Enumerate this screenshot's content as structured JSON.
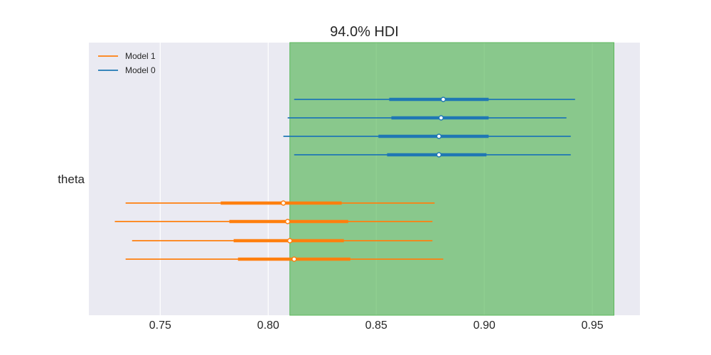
{
  "chart_data": {
    "type": "forest",
    "title": "94.0% HDI",
    "variable": "theta",
    "xlim": [
      0.717,
      0.972
    ],
    "xticks": [
      0.75,
      0.8,
      0.85,
      0.9,
      0.95
    ],
    "xtick_labels": [
      "0.75",
      "0.80",
      "0.85",
      "0.90",
      "0.95"
    ],
    "grid": true,
    "legend_position": "top-left",
    "reference_band": {
      "from": 0.81,
      "to": 0.96,
      "color": "#5cb85c"
    },
    "series": [
      {
        "name": "Model 1",
        "color": "#ff7f0e",
        "chains": [
          {
            "hdi94": [
              0.734,
              0.877
            ],
            "iqr": [
              0.778,
              0.834
            ],
            "median": 0.807
          },
          {
            "hdi94": [
              0.729,
              0.876
            ],
            "iqr": [
              0.782,
              0.837
            ],
            "median": 0.809
          },
          {
            "hdi94": [
              0.737,
              0.876
            ],
            "iqr": [
              0.784,
              0.835
            ],
            "median": 0.81
          },
          {
            "hdi94": [
              0.734,
              0.881
            ],
            "iqr": [
              0.786,
              0.838
            ],
            "median": 0.812
          }
        ]
      },
      {
        "name": "Model 0",
        "color": "#1f77b4",
        "chains": [
          {
            "hdi94": [
              0.812,
              0.942
            ],
            "iqr": [
              0.856,
              0.902
            ],
            "median": 0.881
          },
          {
            "hdi94": [
              0.809,
              0.938
            ],
            "iqr": [
              0.857,
              0.902
            ],
            "median": 0.88
          },
          {
            "hdi94": [
              0.807,
              0.94
            ],
            "iqr": [
              0.851,
              0.902
            ],
            "median": 0.879
          },
          {
            "hdi94": [
              0.812,
              0.94
            ],
            "iqr": [
              0.855,
              0.901
            ],
            "median": 0.879
          }
        ]
      }
    ]
  }
}
